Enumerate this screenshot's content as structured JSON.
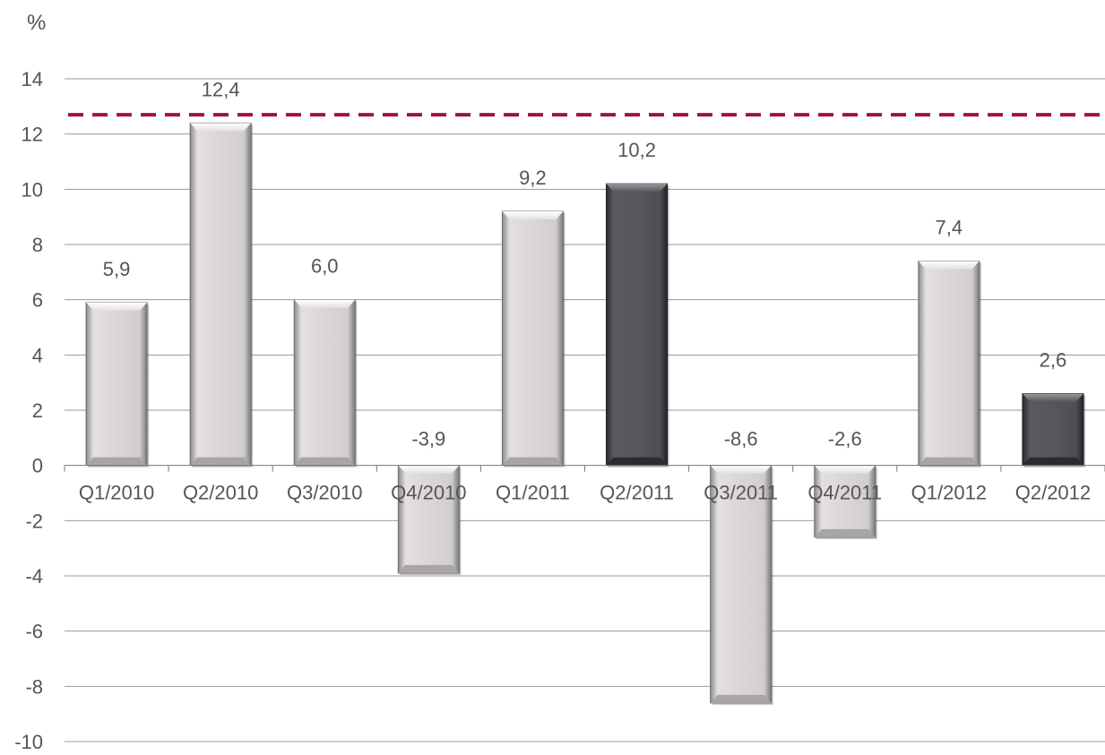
{
  "chart_data": {
    "type": "bar",
    "ylabel": "%",
    "ylim": [
      -10,
      14
    ],
    "yticks": [
      -10,
      -8,
      -6,
      -4,
      -2,
      0,
      2,
      4,
      6,
      8,
      10,
      12,
      14
    ],
    "ytick_labels": [
      "-10",
      "-8",
      "-6",
      "-4",
      "-2",
      "0",
      "2",
      "4",
      "6",
      "8",
      "10",
      "12",
      "14"
    ],
    "grid": true,
    "categories": [
      "Q1/2010",
      "Q2/2010",
      "Q3/2010",
      "Q4/2010",
      "Q1/2011",
      "Q2/2011",
      "Q3/2011",
      "Q4/2011",
      "Q1/2012",
      "Q2/2012"
    ],
    "values": [
      5.9,
      12.4,
      6.0,
      -3.9,
      9.2,
      10.2,
      -8.6,
      -2.6,
      7.4,
      2.6
    ],
    "value_labels": [
      "5,9",
      "12,4",
      "6,0",
      "-3,9",
      "9,2",
      "10,2",
      "-8,6",
      "-2,6",
      "7,4",
      "2,6"
    ],
    "highlighted": [
      false,
      false,
      false,
      false,
      false,
      true,
      false,
      false,
      false,
      true
    ],
    "reference_line": {
      "value": 12.7,
      "style": "dashed"
    },
    "colors": {
      "bar": "#dcd8d8",
      "bar_highlight": "#57565b",
      "reference_line": "#a0104a",
      "grid": "#9a9a9a",
      "text": "#555555"
    }
  }
}
